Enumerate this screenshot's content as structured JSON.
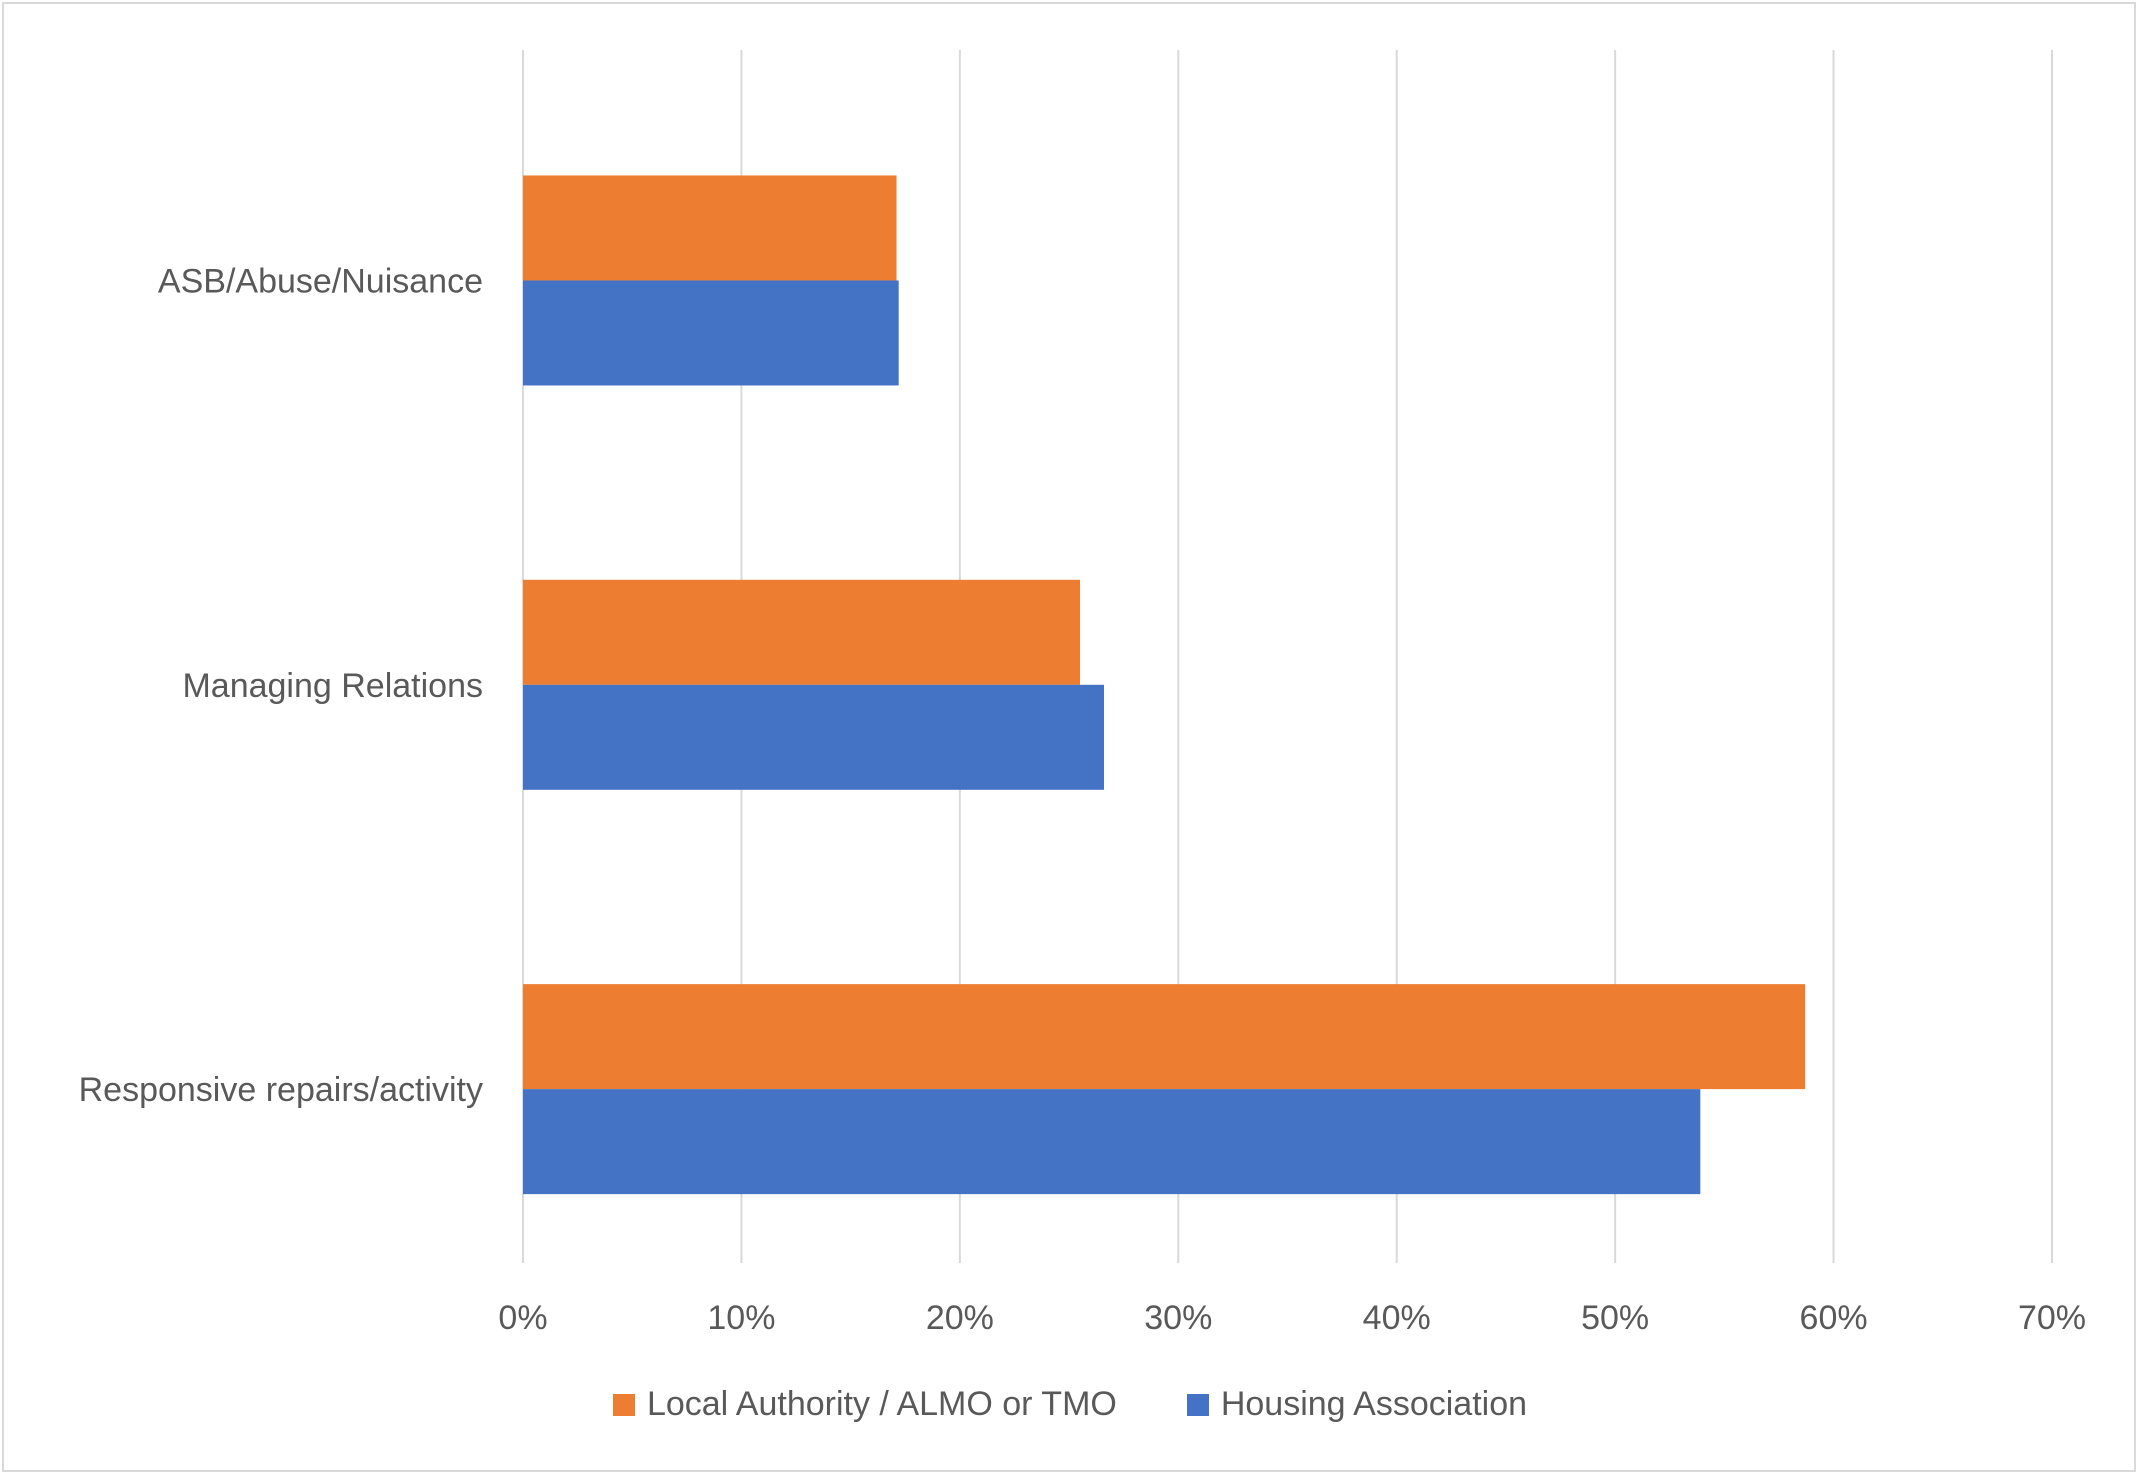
{
  "chart_data": {
    "type": "bar",
    "orientation": "horizontal",
    "title": "",
    "xlabel": "",
    "ylabel": "",
    "categories": [
      "ASB/Abuse/Nuisance",
      "Managing Relations",
      "Responsive repairs/activity"
    ],
    "series": [
      {
        "name": "Local Authority / ALMO or TMO",
        "color": "#ED7D31",
        "values": [
          17.1,
          25.5,
          58.7
        ]
      },
      {
        "name": "Housing Association",
        "color": "#4472C4",
        "values": [
          17.2,
          26.6,
          53.9
        ]
      }
    ],
    "xlim": [
      0,
      70
    ],
    "x_ticks": [
      "0%",
      "10%",
      "20%",
      "30%",
      "40%",
      "50%",
      "60%",
      "70%"
    ],
    "grid": "vertical",
    "legend_position": "bottom"
  }
}
